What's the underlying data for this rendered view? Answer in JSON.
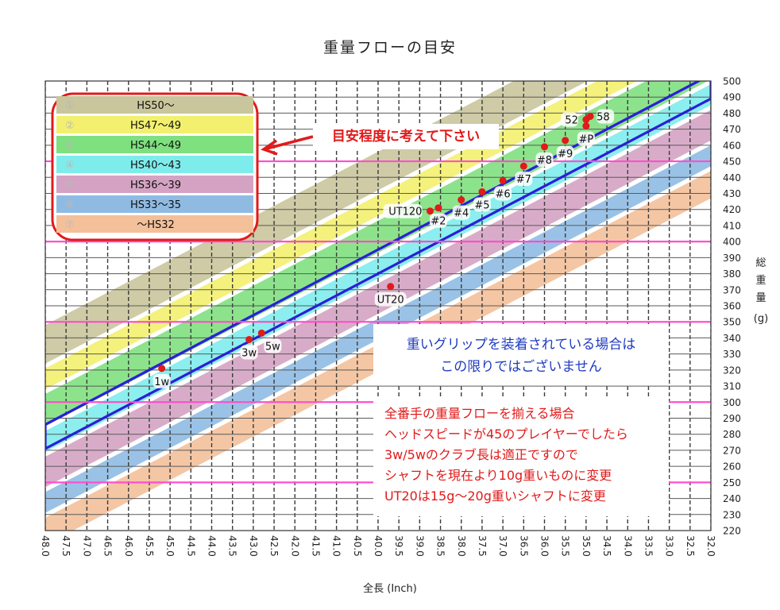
{
  "chart_data": {
    "type": "line",
    "title": "重量フローの目安",
    "xlabel": "全長 (Inch)",
    "ylabel": [
      "総",
      "重",
      "量",
      "(g)"
    ],
    "xlim": [
      48.0,
      32.0
    ],
    "ylim": [
      220,
      500
    ],
    "x_ticks": [
      "48.0",
      "47.5",
      "47.0",
      "46.5",
      "46.0",
      "45.5",
      "45.0",
      "44.5",
      "44.0",
      "43.5",
      "43.0",
      "42.5",
      "42.0",
      "41.5",
      "41.0",
      "40.5",
      "40.0",
      "39.5",
      "39.0",
      "38.5",
      "38.0",
      "37.5",
      "37.0",
      "36.5",
      "36.0",
      "35.5",
      "35.0",
      "34.5",
      "34.0",
      "33.5",
      "33.0",
      "32.5",
      "32.0"
    ],
    "y_ticks": [
      500,
      490,
      480,
      470,
      460,
      450,
      440,
      430,
      420,
      410,
      400,
      390,
      380,
      370,
      360,
      350,
      340,
      330,
      320,
      310,
      300,
      290,
      280,
      270,
      260,
      250,
      240,
      230,
      220
    ],
    "bands": [
      {
        "label": "①",
        "name": "HS50〜",
        "color": "#c9c59c"
      },
      {
        "label": "②",
        "name": "HS47〜49",
        "color": "#f3f06f"
      },
      {
        "label": "③",
        "name": "HS44〜49",
        "color": "#7fe07f"
      },
      {
        "label": "④",
        "name": "HS40〜43",
        "color": "#7fecec"
      },
      {
        "label": "⑤",
        "name": "HS36〜39",
        "color": "#d4a3c3"
      },
      {
        "label": "⑥",
        "name": "HS33〜35",
        "color": "#8fbbe3"
      },
      {
        "label": "⑦",
        "name": "〜HS32",
        "color": "#f3c09a"
      }
    ],
    "band_slope": 13.5,
    "band_tops_at_48": [
      348,
      321,
      305,
      282,
      266,
      244,
      228
    ],
    "band_gap": 3,
    "recommended_zone": {
      "color": "#2a1fd8",
      "upper": [
        [
          48.0,
          286
        ],
        [
          32.0,
          504
        ]
      ],
      "lower": [
        [
          48.0,
          271
        ],
        [
          32.0,
          489
        ]
      ]
    },
    "reference_lines": {
      "color": "#ff4fcf",
      "y": [
        450,
        400,
        350,
        300,
        250
      ]
    },
    "points": [
      {
        "label": "1w",
        "x": 45.2,
        "y": 321,
        "label_pos": "below"
      },
      {
        "label": "3w",
        "x": 43.1,
        "y": 339,
        "label_pos": "below"
      },
      {
        "label": "5w",
        "x": 42.8,
        "y": 343,
        "label_pos": "below-right"
      },
      {
        "label": "UT20",
        "x": 39.7,
        "y": 372,
        "label_pos": "below"
      },
      {
        "label": "UT120",
        "x": 38.75,
        "y": 419,
        "label_pos": "left"
      },
      {
        "label": "#2",
        "x": 38.55,
        "y": 421,
        "label_pos": "below"
      },
      {
        "label": "#4",
        "x": 38.0,
        "y": 426,
        "label_pos": "below"
      },
      {
        "label": "#5",
        "x": 37.5,
        "y": 431,
        "label_pos": "below"
      },
      {
        "label": "#6",
        "x": 37.0,
        "y": 438,
        "label_pos": "below"
      },
      {
        "label": "#7",
        "x": 36.5,
        "y": 447,
        "label_pos": "below"
      },
      {
        "label": "#8",
        "x": 36.0,
        "y": 459,
        "label_pos": "below"
      },
      {
        "label": "#9",
        "x": 35.5,
        "y": 463,
        "label_pos": "below"
      },
      {
        "label": "#P",
        "x": 35.0,
        "y": 472,
        "label_pos": "below"
      },
      {
        "label": "52",
        "x": 35.0,
        "y": 476,
        "label_pos": "left"
      },
      {
        "label": "58",
        "x": 34.9,
        "y": 478,
        "label_pos": "right"
      }
    ],
    "point_color": "#e21a1a"
  },
  "callout": {
    "text": "目安程度に考えて下さい"
  },
  "notes": {
    "blue": [
      "重いグリップを装着されている場合は",
      "この限りではございません"
    ],
    "red": [
      "全番手の重量フローを揃える場合",
      "ヘッドスピードが45のプレイヤーでしたら",
      "3w/5wのクラブ長は適正ですので",
      "シャフトを現在より10g重いものに変更",
      "UT20は15g〜20g重いシャフトに変更"
    ]
  }
}
